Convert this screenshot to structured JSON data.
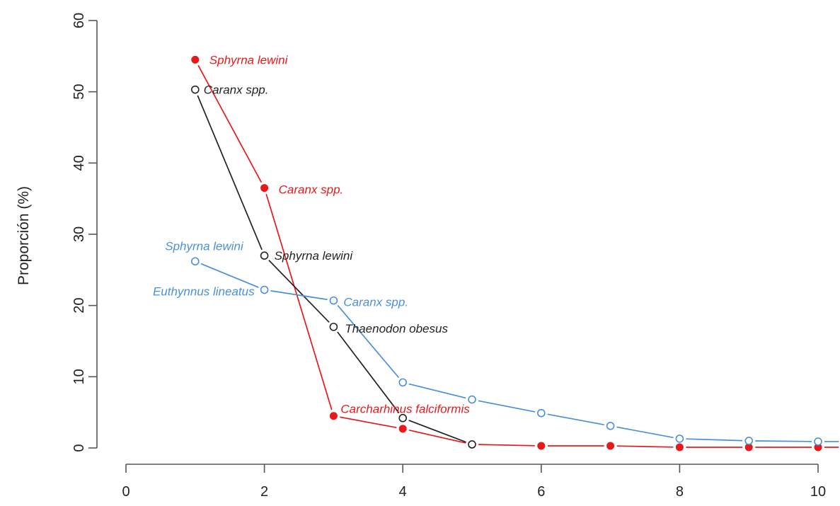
{
  "chart_data": {
    "type": "line",
    "title": "",
    "xlabel": "",
    "ylabel": "Proporción (%)",
    "xlim": [
      0,
      10
    ],
    "ylim": [
      0,
      60
    ],
    "x_ticks": [
      0,
      2,
      4,
      6,
      8,
      10
    ],
    "y_ticks": [
      0,
      10,
      20,
      30,
      40,
      50,
      60
    ],
    "grid": false,
    "legend": "none",
    "series": [
      {
        "color": "#e8191b",
        "marker": "filled-circle",
        "x": [
          1,
          2,
          3,
          4,
          5,
          6,
          7,
          8,
          9,
          10,
          10.3
        ],
        "values": [
          54.5,
          36.5,
          4.5,
          2.7,
          0.5,
          0.3,
          0.3,
          0.1,
          0.1,
          0.1,
          0.1
        ]
      },
      {
        "color": "#222222",
        "marker": "open-circle",
        "x": [
          1,
          2,
          3,
          4,
          5
        ],
        "values": [
          50.3,
          27.0,
          17.0,
          4.2,
          0.5
        ]
      },
      {
        "color": "#4a90d9",
        "marker": "open-circle",
        "x": [
          1,
          2,
          3,
          4,
          5,
          6,
          7,
          8,
          9,
          10,
          10.3
        ],
        "values": [
          26.2,
          22.2,
          20.7,
          9.2,
          6.8,
          4.9,
          3.1,
          1.3,
          1.0,
          0.9,
          0.9
        ]
      }
    ],
    "annotations": [
      {
        "text": "Sphyrna lewini",
        "x": 1,
        "y": 54.5,
        "color": "#e8191b",
        "anchor": "start",
        "dx": 20,
        "dy": 6
      },
      {
        "text": "Caranx spp.",
        "x": 2,
        "y": 36.5,
        "color": "#e8191b",
        "anchor": "start",
        "dx": 20,
        "dy": 8
      },
      {
        "text": "Carcharhinus falciformis",
        "x": 3,
        "y": 4.5,
        "color": "#e8191b",
        "anchor": "start",
        "dx": 10,
        "dy": -4
      },
      {
        "text": "Caranx spp.",
        "x": 1,
        "y": 50.3,
        "color": "#222222",
        "anchor": "start",
        "dx": 12,
        "dy": 6
      },
      {
        "text": "Sphyrna lewini",
        "x": 2,
        "y": 27.0,
        "color": "#222222",
        "anchor": "start",
        "dx": 14,
        "dy": 6
      },
      {
        "text": "Thaenodon obesus",
        "x": 3,
        "y": 17.0,
        "color": "#222222",
        "anchor": "start",
        "dx": 16,
        "dy": 8
      },
      {
        "text": "Sphyrna lewini",
        "x": 1,
        "y": 26.2,
        "color": "#4a90d9",
        "anchor": "end",
        "dx": 68,
        "dy": -16
      },
      {
        "text": "Euthynnus lineatus",
        "x": 2,
        "y": 22.2,
        "color": "#4a90d9",
        "anchor": "end",
        "dx": -14,
        "dy": 8
      },
      {
        "text": "Caranx spp.",
        "x": 3,
        "y": 20.7,
        "color": "#4a90d9",
        "anchor": "start",
        "dx": 14,
        "dy": 8
      }
    ]
  }
}
